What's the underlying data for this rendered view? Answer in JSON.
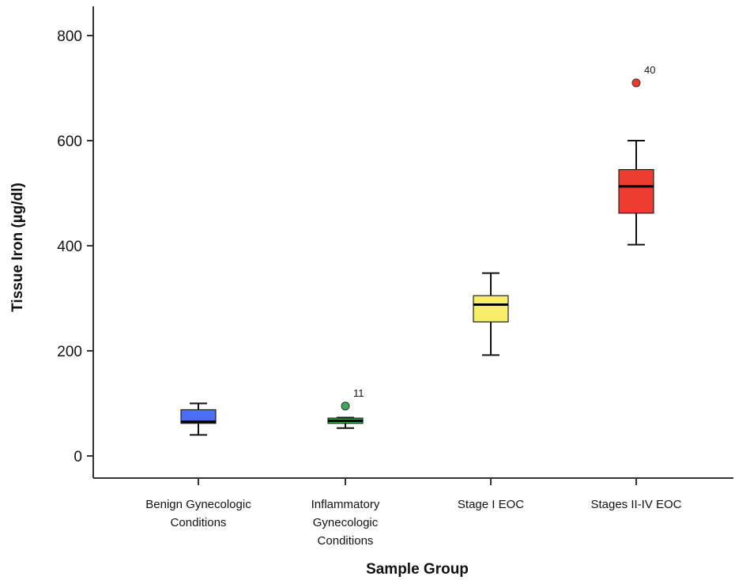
{
  "chart_data": {
    "type": "boxplot",
    "xlabel": "Sample Group",
    "ylabel": "Tissue Iron (µg/dl)",
    "ylim": [
      -45,
      810
    ],
    "yticks": [
      "0",
      "200",
      "400",
      "600",
      "800"
    ],
    "grid": false,
    "legend": "none",
    "categories": [
      {
        "label_lines": [
          "Benign Gynecologic",
          "Conditions"
        ],
        "color": "#4a6cf7",
        "whisker_low": 40,
        "q1": 62,
        "median": 65,
        "q3": 88,
        "whisker_high": 100,
        "outliers": []
      },
      {
        "label_lines": [
          "Inflammatory",
          "Gynecologic",
          "Conditions"
        ],
        "color": "#3aaa5a",
        "whisker_low": 53,
        "q1": 62,
        "median": 67,
        "q3": 72,
        "whisker_high": 73,
        "outliers": [
          {
            "value": 95,
            "label": "11",
            "color": "#3aaa5a"
          }
        ]
      },
      {
        "label_lines": [
          "Stage I EOC"
        ],
        "color": "#f7ef6a",
        "whisker_low": 192,
        "q1": 255,
        "median": 288,
        "q3": 305,
        "whisker_high": 348,
        "outliers": []
      },
      {
        "label_lines": [
          "Stages II-IV EOC"
        ],
        "color": "#ee3b30",
        "whisker_low": 402,
        "q1": 462,
        "median": 513,
        "q3": 545,
        "whisker_high": 600,
        "outliers": [
          {
            "value": 710,
            "label": "40",
            "color": "#ee3b30"
          }
        ]
      }
    ]
  }
}
